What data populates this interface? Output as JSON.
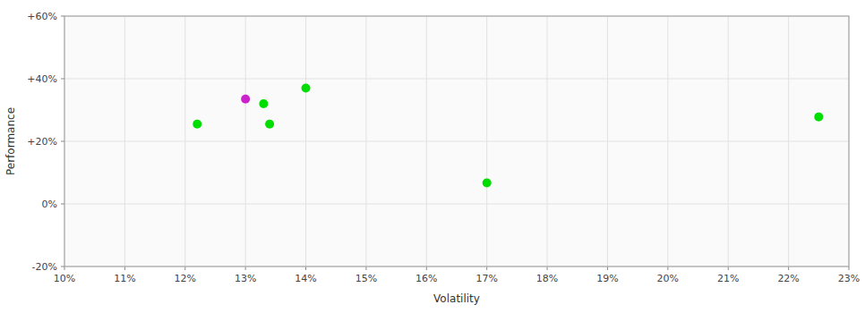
{
  "chart_data": {
    "type": "scatter",
    "x_label": "Volatility",
    "y_label": "Performance",
    "x": [
      0.122,
      0.13,
      0.133,
      0.14,
      0.134,
      0.17,
      0.225
    ],
    "values": [
      0.255,
      0.335,
      0.32,
      0.37,
      0.255,
      0.067,
      0.278
    ],
    "colors": [
      "#00dd00",
      "#cc22cc",
      "#00dd00",
      "#00dd00",
      "#00dd00",
      "#00dd00",
      "#00dd00"
    ],
    "xlim": [
      0.1,
      0.23
    ],
    "ylim": [
      -0.2,
      0.6
    ],
    "xticks": [
      {
        "value": 0.1,
        "label": "10%"
      },
      {
        "value": 0.11,
        "label": "11%"
      },
      {
        "value": 0.12,
        "label": "12%"
      },
      {
        "value": 0.13,
        "label": "13%"
      },
      {
        "value": 0.14,
        "label": "14%"
      },
      {
        "value": 0.15,
        "label": "15%"
      },
      {
        "value": 0.16,
        "label": "16%"
      },
      {
        "value": 0.17,
        "label": "17%"
      },
      {
        "value": 0.18,
        "label": "18%"
      },
      {
        "value": 0.19,
        "label": "19%"
      },
      {
        "value": 0.2,
        "label": "20%"
      },
      {
        "value": 0.21,
        "label": "21%"
      },
      {
        "value": 0.22,
        "label": "22%"
      },
      {
        "value": 0.23,
        "label": "23%"
      }
    ],
    "yticks": [
      {
        "value": -0.2,
        "label": "-20%"
      },
      {
        "value": 0.0,
        "label": "0%"
      },
      {
        "value": 0.2,
        "label": "+20%"
      },
      {
        "value": 0.4,
        "label": "+40%"
      },
      {
        "value": 0.6,
        "label": "+60%"
      }
    ],
    "grid": true
  }
}
